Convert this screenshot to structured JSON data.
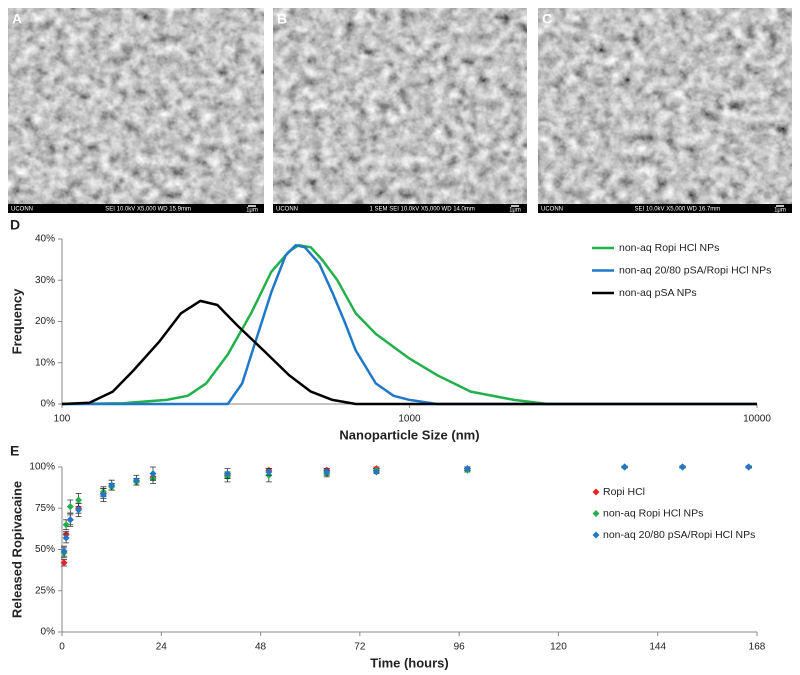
{
  "images": [
    {
      "label": "A",
      "left": "UCONN",
      "caption": "SEI   10.0kV   X5,000   WD 15.9mm",
      "scale": "1μm"
    },
    {
      "label": "B",
      "left": "UCONN",
      "caption": "1   SEM   SEI   10.0kV   X5,000   WD 14.0mm",
      "scale": "1μm"
    },
    {
      "label": "C",
      "left": "UCONN",
      "caption": "SEI   10.0kV   X5,000   WD 16.7mm",
      "scale": "1μm"
    }
  ],
  "chart_data": [
    {
      "type": "line",
      "panel_label": "D",
      "xlabel": "Nanoparticle Size (nm)",
      "ylabel": "Frequency",
      "xscale": "log",
      "xlim": [
        100,
        10000
      ],
      "xticks": [
        100,
        1000,
        10000
      ],
      "ylim": [
        0,
        40
      ],
      "yticks": [
        {
          "value": 0,
          "label": "0%"
        },
        {
          "value": 10,
          "label": "10%"
        },
        {
          "value": 20,
          "label": "20%"
        },
        {
          "value": 30,
          "label": "30%"
        },
        {
          "value": 40,
          "label": "40%"
        }
      ],
      "legend": "right",
      "series": [
        {
          "name": "non-aq Ropi HCl NPs",
          "color": "#22b04a",
          "x": [
            100,
            150,
            200,
            230,
            260,
            300,
            350,
            400,
            450,
            480,
            520,
            560,
            620,
            700,
            800,
            1000,
            1200,
            1500,
            2000,
            2500,
            10000
          ],
          "values": [
            0,
            0.2,
            1,
            2,
            5,
            12,
            22,
            32,
            37,
            38.5,
            38,
            35,
            30,
            22,
            17,
            11,
            7,
            3,
            1,
            0,
            0
          ]
        },
        {
          "name": "non-aq 20/80 pSA/Ropi HCl NPs",
          "color": "#1f78c8",
          "x": [
            100,
            300,
            330,
            360,
            400,
            440,
            470,
            500,
            550,
            600,
            650,
            700,
            800,
            900,
            1000,
            1200,
            10000
          ],
          "values": [
            0,
            0,
            5,
            15,
            27,
            36,
            38.5,
            38,
            34,
            27,
            20,
            13,
            5,
            2,
            1,
            0,
            0
          ]
        },
        {
          "name": "non-aq pSA NPs",
          "color": "#000000",
          "x": [
            100,
            120,
            140,
            160,
            190,
            220,
            250,
            280,
            320,
            380,
            450,
            520,
            600,
            700,
            10000
          ],
          "values": [
            0,
            0.3,
            3,
            8,
            15,
            22,
            25,
            24,
            19,
            13,
            7,
            3,
            1,
            0,
            0
          ]
        }
      ]
    },
    {
      "type": "scatter",
      "panel_label": "E",
      "xlabel": "Time (hours)",
      "ylabel": "Released Ropivacaine",
      "xlim": [
        0,
        168
      ],
      "xticks": [
        0,
        24,
        48,
        72,
        96,
        120,
        144,
        168
      ],
      "ylim": [
        0,
        100
      ],
      "yticks": [
        {
          "value": 0,
          "label": "0%"
        },
        {
          "value": 25,
          "label": "25%"
        },
        {
          "value": 50,
          "label": "50%"
        },
        {
          "value": 75,
          "label": "75%"
        },
        {
          "value": 100,
          "label": "100%"
        }
      ],
      "legend": "right",
      "series": [
        {
          "name": "Ropi HCl",
          "color": "#e8202a",
          "x": [
            0.5,
            1,
            2,
            4,
            10,
            12,
            18,
            22,
            40,
            50,
            64,
            76,
            98,
            136,
            150,
            166
          ],
          "values": [
            42,
            59,
            68,
            75,
            84,
            88,
            91,
            94,
            95,
            98,
            98,
            99,
            99,
            100,
            100,
            100
          ],
          "errors": [
            2,
            2,
            3,
            3,
            3,
            2,
            2,
            2,
            2,
            1,
            1,
            1,
            1,
            0.5,
            0.5,
            0.5
          ]
        },
        {
          "name": "non-aq Ropi HCl NPs",
          "color": "#22b04a",
          "x": [
            0.5,
            1,
            2,
            4,
            10,
            12,
            18,
            22,
            40,
            50,
            64,
            76,
            98,
            136,
            150,
            166
          ],
          "values": [
            48,
            65,
            76,
            80,
            85,
            88,
            91,
            93,
            94,
            95,
            96,
            98,
            98,
            100,
            100,
            100
          ],
          "errors": [
            3,
            3,
            4,
            4,
            3,
            2,
            2,
            3,
            3,
            4,
            2,
            1,
            1,
            0.5,
            0.5,
            0.5
          ]
        },
        {
          "name": "non-aq 20/80 pSA/Ropi HCl NPs",
          "color": "#1f78c8",
          "x": [
            0.5,
            1,
            2,
            4,
            10,
            12,
            18,
            22,
            40,
            50,
            64,
            76,
            98,
            136,
            150,
            166
          ],
          "values": [
            49,
            57,
            68,
            74,
            83,
            89,
            92,
            96,
            96,
            97,
            97,
            97,
            99,
            100,
            100,
            100
          ],
          "errors": [
            3,
            3,
            4,
            4,
            4,
            3,
            3,
            4,
            3,
            2,
            2,
            1,
            1,
            0.5,
            0.5,
            0.5
          ]
        }
      ]
    }
  ]
}
